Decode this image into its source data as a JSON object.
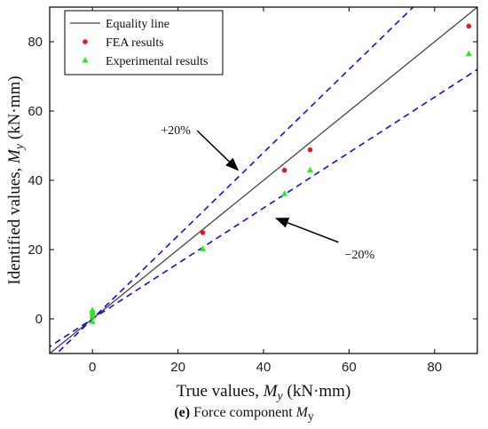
{
  "chart_data": {
    "type": "scatter",
    "xlabel": {
      "text": "True values, ",
      "var": "M",
      "sub": "y",
      "unit": " (kN·mm)"
    },
    "ylabel": {
      "text": "Identified values, ",
      "var": "M",
      "sub": "y",
      "unit": " (kN·mm)"
    },
    "xlim": [
      -10,
      90
    ],
    "ylim": [
      -10,
      90
    ],
    "xticks": [
      0,
      20,
      40,
      60,
      80
    ],
    "yticks": [
      0,
      20,
      40,
      60,
      80
    ],
    "grid": false,
    "legend_position": "top-left",
    "lines": [
      {
        "name": "Equality line",
        "slope": 1.0,
        "style": "solid",
        "color": "#444444"
      },
      {
        "name": "",
        "slope": 1.2,
        "style": "dashed",
        "color": "#1010dd"
      },
      {
        "name": "",
        "slope": 0.8,
        "style": "dashed",
        "color": "#1010dd"
      }
    ],
    "series": [
      {
        "name": "FEA results",
        "marker": "circle",
        "color": "#e01b1b",
        "points": [
          [
            0,
            0.5
          ],
          [
            0,
            1.5
          ],
          [
            0,
            2.0
          ],
          [
            25.8,
            24.9
          ],
          [
            44.9,
            42.9
          ],
          [
            50.9,
            48.8
          ],
          [
            88,
            84.5
          ]
        ]
      },
      {
        "name": "Experimental results",
        "marker": "triangle",
        "color": "#22ee22",
        "points": [
          [
            0,
            -0.8
          ],
          [
            0,
            0.8
          ],
          [
            0,
            1.8
          ],
          [
            0,
            2.5
          ],
          [
            25.8,
            20.2
          ],
          [
            44.9,
            36.1
          ],
          [
            50.9,
            42.9
          ],
          [
            88,
            76.5
          ]
        ]
      }
    ],
    "annotations": [
      {
        "text": "+20%",
        "x": 19.5,
        "y": 53.3,
        "arrow_to": [
          34,
          43
        ]
      },
      {
        "text": "−20%",
        "x": 62.5,
        "y": 17.5,
        "arrow_to": [
          43,
          29
        ]
      }
    ]
  },
  "caption": {
    "letter": "(e)",
    "text": " Force component ",
    "var": "M",
    "sub": "y"
  }
}
